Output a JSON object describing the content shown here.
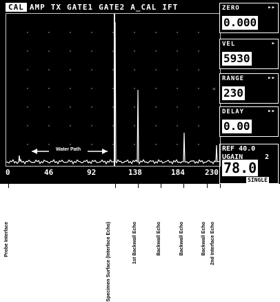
{
  "tabs": [
    {
      "label": "CAL",
      "active": true
    },
    {
      "label": "AMP",
      "active": false
    },
    {
      "label": "TX",
      "active": false
    },
    {
      "label": "GATE1",
      "active": false
    },
    {
      "label": "GATE2",
      "active": false
    },
    {
      "label": "A_CAL",
      "active": false
    },
    {
      "label": "IFT",
      "active": false
    }
  ],
  "params": {
    "zero": {
      "label": "ZERO",
      "mark": "▸▸",
      "value": "0.000"
    },
    "vel": {
      "label": "VEL",
      "mark": "▸",
      "value": "5930"
    },
    "range": {
      "label": "RANGE",
      "mark": "▸▸",
      "value": "230"
    },
    "delay": {
      "label": "DELAY",
      "mark": "▸▸",
      "value": "0.00"
    }
  },
  "gain": {
    "ref_line": "REF 40.0",
    "ugain_label": "UGAIN",
    "ugain_step": "2",
    "value": "78.0",
    "mode": "SINGLE"
  },
  "marker_arrow": "◃",
  "scale": {
    "labels": [
      "0",
      "46",
      "92",
      "138",
      "184",
      "230"
    ]
  },
  "annotation": {
    "water_path": "Water Path"
  },
  "captions": [
    "Probe Interface",
    "Specimen Surface (Interface Echo)",
    "1st Backwall Echo",
    "Backwall Echo",
    "Backwall Echo",
    "Backwall Echo",
    "2nd Interface Echo"
  ],
  "colors": {
    "screen": "#000000",
    "trace": "#ffffff",
    "grid": "#9a9a9a"
  }
}
